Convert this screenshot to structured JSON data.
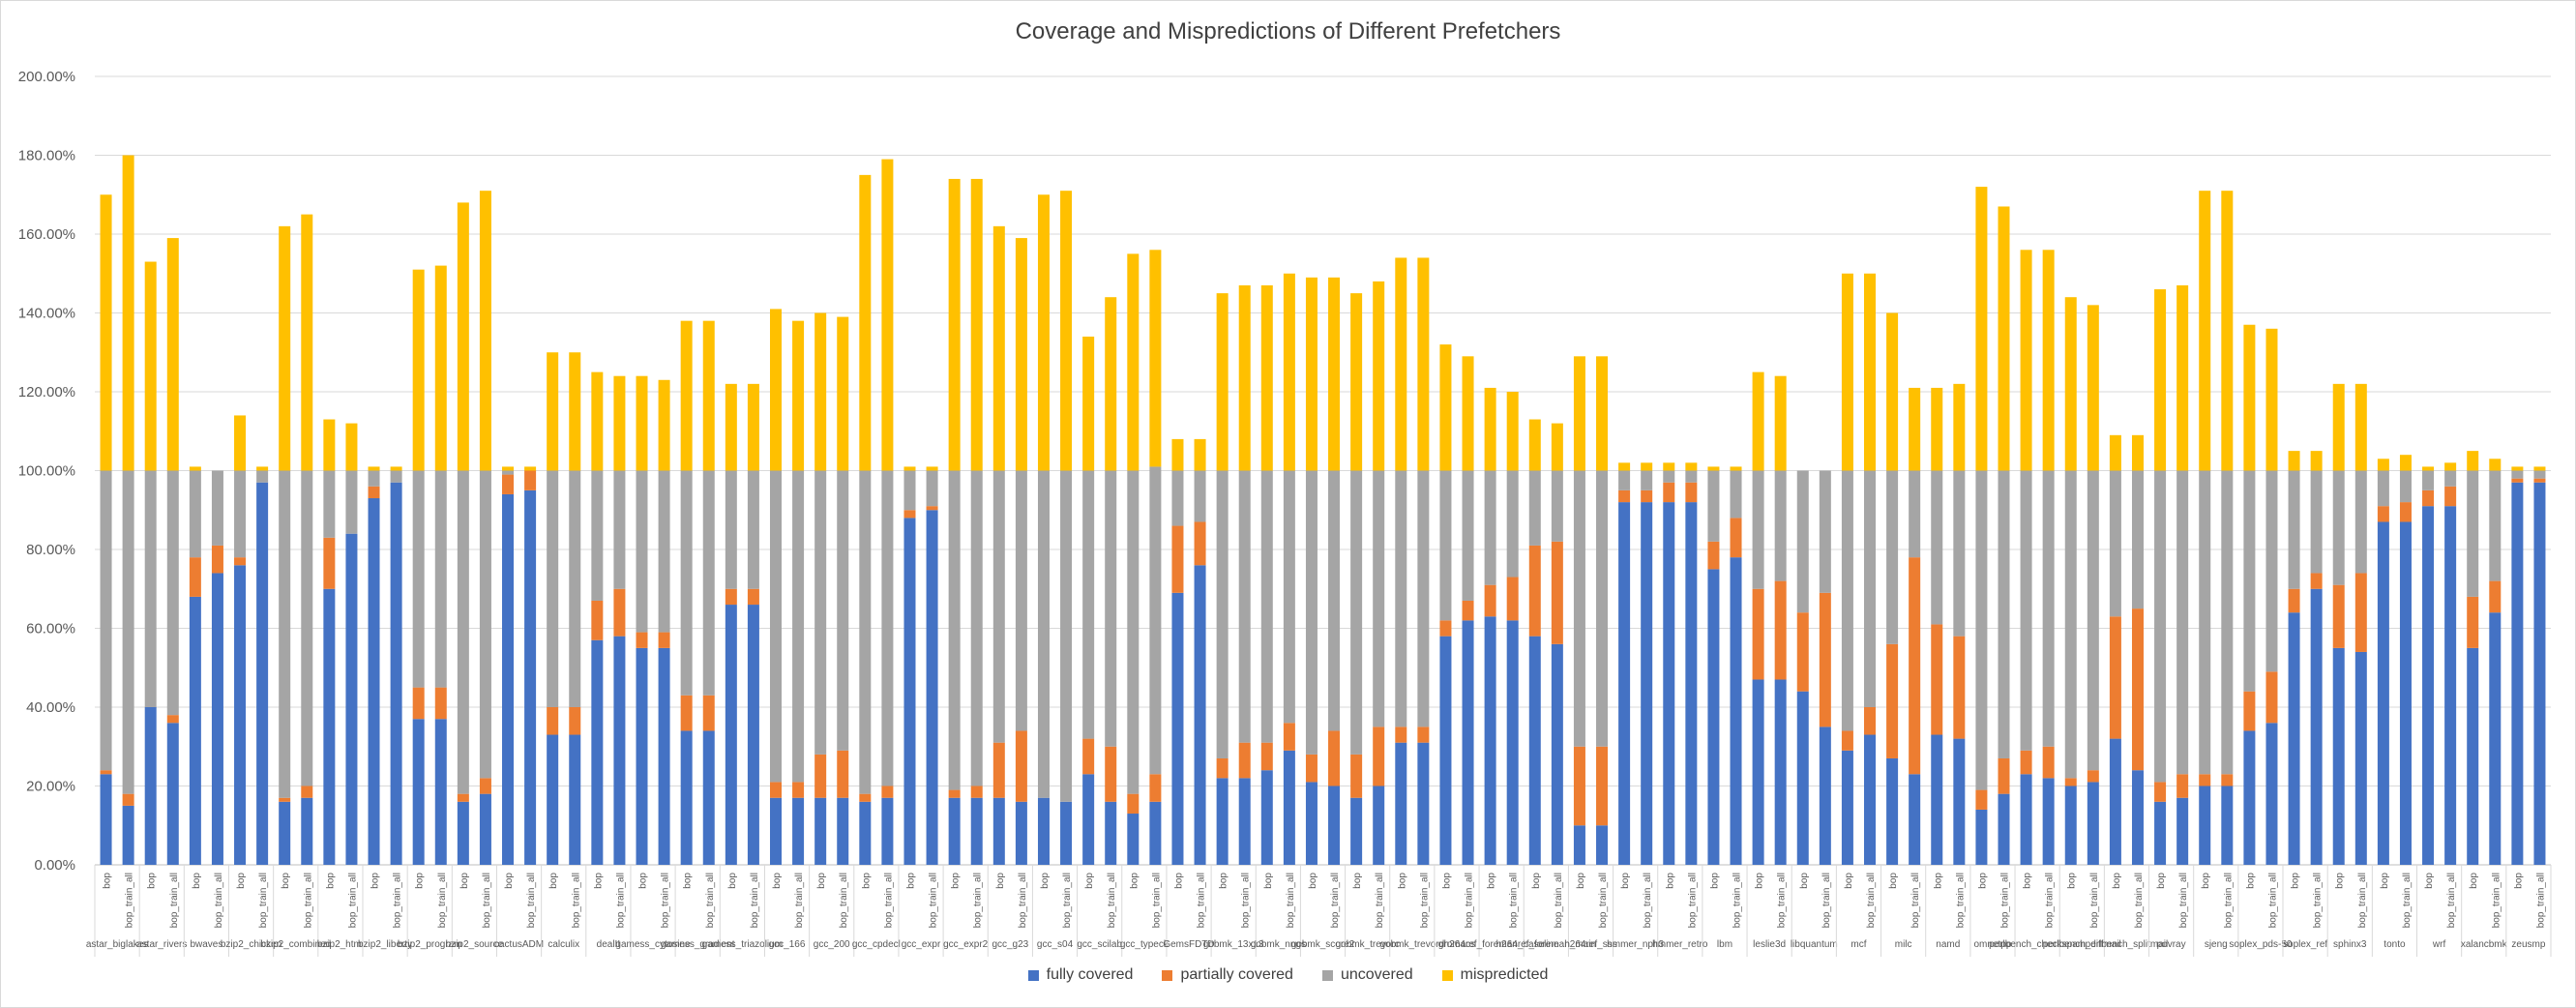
{
  "chart_data": {
    "type": "bar",
    "stacked": true,
    "title": "Coverage and Mispredictions of Different Prefetchers",
    "xlabel": "",
    "ylabel": "",
    "ylim": [
      0,
      200
    ],
    "yticks": [
      "0.00%",
      "20.00%",
      "40.00%",
      "60.00%",
      "80.00%",
      "100.00%",
      "120.00%",
      "140.00%",
      "160.00%",
      "180.00%",
      "200.00%"
    ],
    "grid": true,
    "legend_position": "bottom",
    "colors": {
      "fully covered": "#4472c4",
      "partially covered": "#ed7d31",
      "uncovered": "#a5a5a5",
      "mispredicted": "#ffc000"
    },
    "legend": [
      "fully covered",
      "partially covered",
      "uncovered",
      "mispredicted"
    ],
    "groups": [
      {
        "name": "astar_biglakes",
        "bars": [
          "bop",
          "bop_train_all"
        ]
      },
      {
        "name": "astar_rivers",
        "bars": [
          "bop",
          "bop_train_all"
        ]
      },
      {
        "name": "bwaves",
        "bars": [
          "bop",
          "bop_train_all"
        ]
      },
      {
        "name": "bzip2_chicken",
        "bars": [
          "bop",
          "bop_train_all"
        ]
      },
      {
        "name": "bzip2_combined",
        "bars": [
          "bop",
          "bop_train_all"
        ]
      },
      {
        "name": "bzip2_html",
        "bars": [
          "bop",
          "bop_train_all"
        ]
      },
      {
        "name": "bzip2_liberty",
        "bars": [
          "bop",
          "bop_train_all"
        ]
      },
      {
        "name": "bzip2_program",
        "bars": [
          "bop",
          "bop_train_all"
        ]
      },
      {
        "name": "bzip2_source",
        "bars": [
          "bop",
          "bop_train_all"
        ]
      },
      {
        "name": "cactusADM",
        "bars": [
          "bop",
          "bop_train_all"
        ]
      },
      {
        "name": "calculix",
        "bars": [
          "bop",
          "bop_train_all"
        ]
      },
      {
        "name": "dealII",
        "bars": [
          "bop",
          "bop_train_all"
        ]
      },
      {
        "name": "gamess_cytosine",
        "bars": [
          "bop",
          "bop_train_all"
        ]
      },
      {
        "name": "gamess_gradient",
        "bars": [
          "bop",
          "bop_train_all"
        ]
      },
      {
        "name": "gamess_triazolium",
        "bars": [
          "bop",
          "bop_train_all"
        ]
      },
      {
        "name": "gcc_166",
        "bars": [
          "bop",
          "bop_train_all"
        ]
      },
      {
        "name": "gcc_200",
        "bars": [
          "bop",
          "bop_train_all"
        ]
      },
      {
        "name": "gcc_cpdecl",
        "bars": [
          "bop",
          "bop_train_all"
        ]
      },
      {
        "name": "gcc_expr",
        "bars": [
          "bop",
          "bop_train_all"
        ]
      },
      {
        "name": "gcc_expr2",
        "bars": [
          "bop",
          "bop_train_all"
        ]
      },
      {
        "name": "gcc_g23",
        "bars": [
          "bop",
          "bop_train_all"
        ]
      },
      {
        "name": "gcc_s04",
        "bars": [
          "bop",
          "bop_train_all"
        ]
      },
      {
        "name": "gcc_scilab",
        "bars": [
          "bop",
          "bop_train_all"
        ]
      },
      {
        "name": "gcc_typeck",
        "bars": [
          "bop",
          "bop_train_all"
        ]
      },
      {
        "name": "GemsFDTD",
        "bars": [
          "bop",
          "bop_train_all"
        ]
      },
      {
        "name": "gobmk_13x13",
        "bars": [
          "bop",
          "bop_train_all"
        ]
      },
      {
        "name": "gobmk_nngs",
        "bars": [
          "bop",
          "bop_train_all"
        ]
      },
      {
        "name": "gobmk_score2",
        "bars": [
          "bop",
          "bop_train_all"
        ]
      },
      {
        "name": "gobmk_trevorc",
        "bars": [
          "bop",
          "bop_train_all"
        ]
      },
      {
        "name": "gobmk_trevord",
        "bars": [
          "bop",
          "bop_train_all"
        ]
      },
      {
        "name": "gromacs",
        "bars": [
          "bop",
          "bop_train_all"
        ]
      },
      {
        "name": "h264ref_foreman_baseline",
        "bars": [
          "bop",
          "bop_train_all"
        ]
      },
      {
        "name": "h264ref_foreman_main",
        "bars": [
          "bop",
          "bop_train_all"
        ]
      },
      {
        "name": "h264ref_sss",
        "bars": [
          "bop",
          "bop_train_all"
        ]
      },
      {
        "name": "hmmer_nph3",
        "bars": [
          "bop",
          "bop_train_all"
        ]
      },
      {
        "name": "hmmer_retro",
        "bars": [
          "bop",
          "bop_train_all"
        ]
      },
      {
        "name": "lbm",
        "bars": [
          "bop",
          "bop_train_all"
        ]
      },
      {
        "name": "leslie3d",
        "bars": [
          "bop",
          "bop_train_all"
        ]
      },
      {
        "name": "libquantum",
        "bars": [
          "bop",
          "bop_train_all"
        ]
      },
      {
        "name": "mcf",
        "bars": [
          "bop",
          "bop_train_all"
        ]
      },
      {
        "name": "milc",
        "bars": [
          "bop",
          "bop_train_all"
        ]
      },
      {
        "name": "namd",
        "bars": [
          "bop",
          "bop_train_all"
        ]
      },
      {
        "name": "omnetpp",
        "bars": [
          "bop",
          "bop_train_all"
        ]
      },
      {
        "name": "perlbench_checkspam",
        "bars": [
          "bop",
          "bop_train_all"
        ]
      },
      {
        "name": "perlbench_diffmail",
        "bars": [
          "bop",
          "bop_train_all"
        ]
      },
      {
        "name": "perlbench_splitmail",
        "bars": [
          "bop",
          "bop_train_all"
        ]
      },
      {
        "name": "povray",
        "bars": [
          "bop",
          "bop_train_all"
        ]
      },
      {
        "name": "sjeng",
        "bars": [
          "bop",
          "bop_train_all"
        ]
      },
      {
        "name": "soplex_pds-50",
        "bars": [
          "bop",
          "bop_train_all"
        ]
      },
      {
        "name": "soplex_ref",
        "bars": [
          "bop",
          "bop_train_all"
        ]
      },
      {
        "name": "sphinx3",
        "bars": [
          "bop",
          "bop_train_all"
        ]
      },
      {
        "name": "tonto",
        "bars": [
          "bop",
          "bop_train_all"
        ]
      },
      {
        "name": "wrf",
        "bars": [
          "bop",
          "bop_train_all"
        ]
      },
      {
        "name": "xalancbmk",
        "bars": [
          "bop",
          "bop_train_all"
        ]
      },
      {
        "name": "zeusmp",
        "bars": [
          "bop",
          "bop_train_all"
        ]
      }
    ],
    "series": [
      {
        "name": "fully covered",
        "values": [
          23,
          15,
          40,
          36,
          68,
          74,
          76,
          97,
          16,
          17,
          70,
          84,
          93,
          97,
          37,
          37,
          16,
          18,
          94,
          95,
          33,
          33,
          57,
          58,
          55,
          55,
          34,
          34,
          66,
          66,
          17,
          17,
          17,
          17,
          16,
          17,
          88,
          90,
          17,
          17,
          17,
          16,
          17,
          16,
          23,
          16,
          13,
          16,
          69,
          76,
          22,
          22,
          24,
          29,
          21,
          20,
          17,
          20,
          31,
          31,
          58,
          62,
          63,
          62,
          58,
          56,
          10,
          10,
          92,
          92,
          92,
          92,
          75,
          78,
          47,
          47,
          44,
          35,
          29,
          33,
          27,
          23,
          33,
          32,
          14,
          18,
          23,
          22,
          20,
          21,
          32,
          24,
          16,
          17,
          20,
          20,
          34,
          36,
          64,
          70,
          55,
          54,
          87,
          87,
          91,
          91,
          55,
          64,
          97,
          97
        ]
      },
      {
        "name": "partially covered",
        "values": [
          1,
          3,
          0,
          2,
          10,
          7,
          2,
          0,
          1,
          3,
          13,
          0,
          3,
          0,
          8,
          8,
          2,
          4,
          5,
          5,
          7,
          7,
          10,
          12,
          4,
          4,
          9,
          9,
          4,
          4,
          4,
          4,
          11,
          12,
          2,
          3,
          2,
          1,
          2,
          3,
          14,
          18,
          0,
          0,
          9,
          14,
          5,
          7,
          17,
          11,
          5,
          9,
          7,
          7,
          7,
          14,
          11,
          15,
          4,
          4,
          4,
          5,
          8,
          11,
          23,
          26,
          20,
          20,
          3,
          3,
          5,
          5,
          7,
          10,
          23,
          25,
          20,
          34,
          5,
          7,
          29,
          55,
          28,
          26,
          5,
          9,
          6,
          8,
          2,
          3,
          31,
          41,
          5,
          6,
          3,
          3,
          10,
          13,
          6,
          4,
          16,
          20,
          4,
          5,
          4,
          5,
          13,
          8,
          1,
          1
        ]
      },
      {
        "name": "uncovered",
        "values": [
          76,
          82,
          60,
          62,
          22,
          19,
          22,
          3,
          83,
          80,
          17,
          16,
          4,
          3,
          55,
          55,
          82,
          78,
          1,
          0,
          60,
          60,
          33,
          30,
          41,
          41,
          57,
          57,
          30,
          30,
          79,
          79,
          72,
          71,
          82,
          80,
          10,
          9,
          81,
          80,
          69,
          66,
          83,
          84,
          68,
          70,
          82,
          78,
          14,
          13,
          73,
          69,
          69,
          64,
          72,
          66,
          72,
          65,
          65,
          65,
          38,
          33,
          29,
          27,
          19,
          18,
          70,
          70,
          5,
          5,
          3,
          3,
          18,
          12,
          30,
          28,
          36,
          31,
          66,
          60,
          44,
          22,
          39,
          42,
          81,
          73,
          71,
          70,
          78,
          76,
          37,
          35,
          79,
          77,
          77,
          77,
          56,
          51,
          30,
          26,
          29,
          26,
          9,
          8,
          5,
          4,
          32,
          28,
          2,
          2
        ]
      },
      {
        "name": "mispredicted",
        "values": [
          70,
          80,
          53,
          59,
          1,
          0,
          14,
          1,
          62,
          65,
          13,
          12,
          1,
          1,
          51,
          52,
          68,
          71,
          1,
          1,
          30,
          30,
          25,
          24,
          24,
          23,
          38,
          38,
          22,
          22,
          41,
          38,
          40,
          39,
          75,
          79,
          1,
          1,
          74,
          74,
          62,
          59,
          70,
          71,
          34,
          44,
          55,
          55,
          8,
          8,
          45,
          47,
          47,
          50,
          49,
          49,
          45,
          48,
          54,
          54,
          32,
          29,
          21,
          20,
          13,
          12,
          29,
          29,
          2,
          2,
          2,
          2,
          1,
          1,
          25,
          24,
          0,
          0,
          50,
          50,
          40,
          21,
          21,
          22,
          72,
          67,
          56,
          56,
          44,
          42,
          9,
          9,
          46,
          47,
          71,
          71,
          37,
          36,
          5,
          5,
          22,
          22,
          3,
          4,
          1,
          2,
          5,
          3,
          1,
          1
        ]
      }
    ]
  }
}
